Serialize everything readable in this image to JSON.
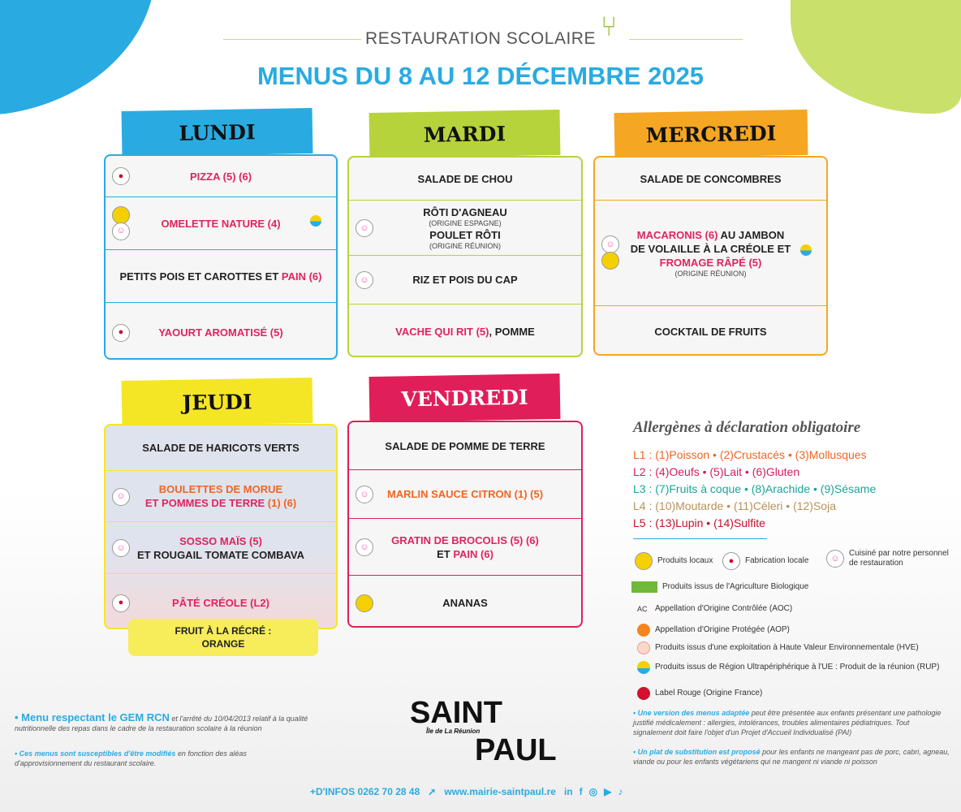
{
  "header": {
    "subtitle": "RESTAURATION SCOLAIRE",
    "title": "MENUS DU 8 AU 12 DÉCEMBRE 2025"
  },
  "colors": {
    "lundi": "#29abe2",
    "mardi": "#b6d33c",
    "mercredi": "#f5a623",
    "jeudi": "#f5e625",
    "vendredi": "#e01e5a",
    "pink": "#e0245e",
    "orange": "#f26522"
  },
  "days": [
    {
      "key": "lundi",
      "name": "LUNDI",
      "rows": [
        {
          "icons": [
            "fabrication-locale-icon"
          ],
          "segs": [
            {
              "t": "PIZZA (5) (6)",
              "c": "p"
            }
          ]
        },
        {
          "icons": [
            "produits-locaux-icon",
            "cuisine-maison-icon"
          ],
          "right": "rup-icon",
          "segs": [
            {
              "t": "OMELETTE NATURE (4)",
              "c": "p"
            }
          ]
        },
        {
          "icons": [],
          "segs": [
            {
              "t": "PETITS POIS ET CAROTTES ET ",
              "c": "k"
            },
            {
              "t": "PAIN (6)",
              "c": "p"
            }
          ]
        },
        {
          "icons": [
            "fabrication-locale-icon"
          ],
          "segs": [
            {
              "t": "YAOURT AROMATISÉ (5)",
              "c": "p"
            }
          ]
        }
      ]
    },
    {
      "key": "mardi",
      "name": "MARDI",
      "rows": [
        {
          "icons": [],
          "segs": [
            {
              "t": "SALADE DE CHOU",
              "c": "k"
            }
          ]
        },
        {
          "icons": [
            "cuisine-maison-icon"
          ],
          "lines": [
            {
              "t": "RÔTI D'AGNEAU",
              "c": "k"
            },
            {
              "t": "(ORIGINE ESPAGNE)",
              "c": "origin"
            },
            {
              "t": "POULET RÔTI",
              "c": "k"
            },
            {
              "t": "(ORIGINE RÉUNION)",
              "c": "origin"
            }
          ]
        },
        {
          "icons": [
            "cuisine-maison-icon"
          ],
          "segs": [
            {
              "t": "RIZ ET POIS DU CAP",
              "c": "k"
            }
          ]
        },
        {
          "icons": [],
          "segs": [
            {
              "t": "VACHE QUI RIT (5)",
              "c": "p"
            },
            {
              "t": ", POMME",
              "c": "k"
            }
          ]
        }
      ]
    },
    {
      "key": "mercredi",
      "name": "MERCREDI",
      "rows": [
        {
          "icons": [],
          "segs": [
            {
              "t": "SALADE DE CONCOMBRES",
              "c": "k"
            }
          ]
        },
        {
          "icons": [
            "cuisine-maison-icon",
            "produits-locaux-icon"
          ],
          "right": "rup-icon",
          "lines": [
            {
              "t": "",
              "c": "k",
              "segs": [
                {
                  "t": "MACARONIS (6)",
                  "c": "p"
                },
                {
                  "t": " AU JAMBON",
                  "c": "k"
                }
              ]
            },
            {
              "t": "DE VOLAILLE À LA CRÉOLE ET",
              "c": "k"
            },
            {
              "t": "FROMAGE RÂPÉ (5)",
              "c": "p"
            },
            {
              "t": "(ORIGINE RÉUNION)",
              "c": "origin"
            }
          ]
        },
        {
          "icons": [],
          "segs": [
            {
              "t": "COCKTAIL DE FRUITS",
              "c": "k"
            }
          ]
        }
      ]
    },
    {
      "key": "jeudi",
      "name": "JEUDI",
      "rows": [
        {
          "icons": [],
          "segs": [
            {
              "t": "SALADE DE HARICOTS VERTS",
              "c": "k"
            }
          ]
        },
        {
          "icons": [
            "cuisine-maison-icon"
          ],
          "lines": [
            {
              "t": "BOULETTES DE MORUE",
              "c": "o"
            },
            {
              "t": "",
              "segs": [
                {
                  "t": "ET POMMES DE TERRE",
                  "c": "p"
                },
                {
                  "t": " (1) (6)",
                  "c": "o"
                }
              ]
            }
          ]
        },
        {
          "icons": [
            "cuisine-maison-icon"
          ],
          "lines": [
            {
              "t": "SOSSO MAÏS (5)",
              "c": "p"
            },
            {
              "t": "ET ROUGAIL TOMATE COMBAVA",
              "c": "k"
            }
          ]
        },
        {
          "icons": [
            "fabrication-locale-icon"
          ],
          "segs": [
            {
              "t": "PÂTÉ CRÉOLE (L2)",
              "c": "p"
            }
          ]
        }
      ]
    },
    {
      "key": "vendredi",
      "name": "VENDREDI",
      "rows": [
        {
          "icons": [],
          "segs": [
            {
              "t": "SALADE DE POMME DE TERRE",
              "c": "k"
            }
          ]
        },
        {
          "icons": [
            "cuisine-maison-icon"
          ],
          "segs": [
            {
              "t": "MARLIN SAUCE CITRON (1) (5)",
              "c": "o"
            }
          ]
        },
        {
          "icons": [
            "cuisine-maison-icon"
          ],
          "lines": [
            {
              "t": "GRATIN DE BROCOLIS (5) (6)",
              "c": "p"
            },
            {
              "t": "",
              "segs": [
                {
                  "t": "ET ",
                  "c": "k"
                },
                {
                  "t": "PAIN (6)",
                  "c": "p"
                }
              ]
            }
          ]
        },
        {
          "icons": [
            "produits-locaux-icon"
          ],
          "segs": [
            {
              "t": "ANANAS",
              "c": "k"
            }
          ]
        }
      ]
    }
  ],
  "fruit": {
    "line1": "FRUIT À LA RÉCRÉ :",
    "line2": "ORANGE"
  },
  "allergens": {
    "title": "Allergènes à déclaration obligatoire",
    "groups": [
      {
        "text": "L1 : (1)Poisson • (2)Crustacés • (3)Mollusques",
        "color": "#f26522"
      },
      {
        "text": "L2 : (4)Oeufs • (5)Lait • (6)Gluten",
        "color": "#d81b60"
      },
      {
        "text": "L3 : (7)Fruits à coque • (8)Arachide • (9)Sésame",
        "color": "#1aa59a"
      },
      {
        "text": "L4 : (10)Moutarde • (11)Céleri • (12)Soja",
        "color": "#b8925a"
      },
      {
        "text": "L5 : (13)Lupin • (14)Sulfite",
        "color": "#c8102e"
      }
    ]
  },
  "legend": {
    "local": "Produits locaux",
    "fab": "Fabrication locale",
    "cuisine": "Cuisiné par notre personnel de restauration",
    "bio": "Produits issus de l'Agriculture Biologique",
    "aoc": "Appellation d'Origine Contrôlée (AOC)",
    "aop": "Appellation d'Origine Protégée (AOP)",
    "hve": "Produits issus d'une exploitation à Haute Valeur Environnementale (HVE)",
    "rup": "Produits issus de Région Ultrapériphérique à l'UE : Produit de la réunion (RUP)",
    "lr": "Label Rouge (Origine France)"
  },
  "notes": {
    "gem_b": "• Menu respectant le GEM RCN",
    "gem": " et l'arrêté du 10/04/2013 relatif à la qualité nutritionnelle des repas dans le cadre de la restauration scolaire à la réunion",
    "mod_b": "• Ces menus sont susceptibles d'être modifiés",
    "mod": " en fonction des aléas d'approvisionnement du restaurant scolaire.",
    "adapt_b": "• Une version des menus adaptée",
    "adapt": " peut être présentée aux enfants présentant une pathologie justifié médicalement : allergies, intolérances, troubles alimentaires pédiatriques. Tout signalement doit faire l'objet d'un Projet d'Accueil Individualisé (PAI)",
    "subst_b": "• Un plat de substitution est proposé",
    "subst": " pour les enfants ne mangeant pas de porc, cabri, agneau, viande ou pour les enfants végétariens qui ne mangent ni viande ni poisson"
  },
  "logo": {
    "line1": "SAINT",
    "line2": "PAUL",
    "tag": "Île de La Réunion"
  },
  "footer": {
    "phone": "+D'INFOS 0262 70 28 48",
    "site": "www.mairie-saintpaul.re",
    "social": [
      "linkedin-icon",
      "facebook-icon",
      "instagram-icon",
      "youtube-icon",
      "tiktok-icon"
    ]
  }
}
